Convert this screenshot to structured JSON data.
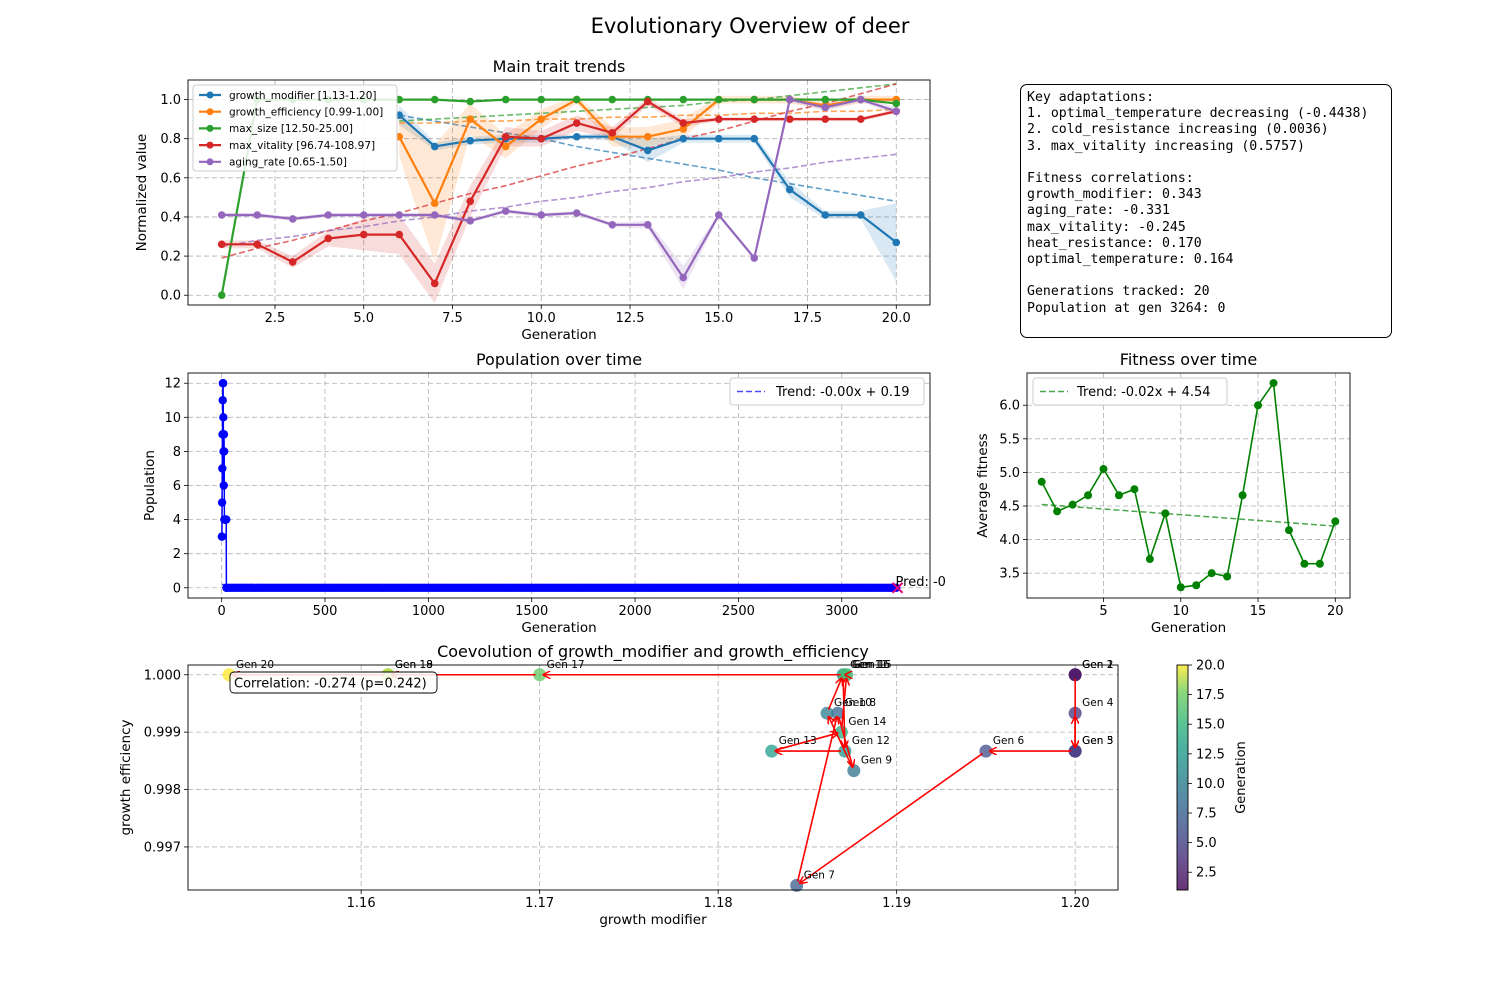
{
  "suptitle": "Evolutionary Overview of deer",
  "colors": {
    "growth_modifier": "#1f77b4",
    "growth_efficiency": "#ff7f0e",
    "max_size": "#2ca02c",
    "max_vitality": "#d62728",
    "aging_rate": "#9467bd",
    "population": "#0000ff",
    "fitness": "#008000",
    "arrows": "#ff0000"
  },
  "info_lines": [
    "Key adaptations:",
    "1. optimal_temperature decreasing (-0.4438)",
    "2. cold_resistance increasing (0.0036)",
    "3. max_vitality increasing (0.5757)",
    "",
    "Fitness correlations:",
    "growth_modifier: 0.343",
    "aging_rate: -0.331",
    "max_vitality: -0.245",
    "heat_resistance: 0.170",
    "optimal_temperature: 0.164",
    "",
    "Generations tracked: 20",
    "Population at gen 3264: 0"
  ],
  "chart_data": [
    {
      "id": "traits",
      "type": "line",
      "title": "Main trait trends",
      "xlabel": "Generation",
      "ylabel": "Normalized value",
      "xlim": [
        0.05,
        20.95
      ],
      "ylim": [
        -0.05,
        1.1
      ],
      "xticks": [
        2.5,
        5.0,
        7.5,
        10.0,
        12.5,
        15.0,
        17.5,
        20.0
      ],
      "xtick_labels": [
        "2.5",
        "5.0",
        "7.5",
        "10.0",
        "12.5",
        "15.0",
        "17.5",
        "20.0"
      ],
      "yticks": [
        0.0,
        0.2,
        0.4,
        0.6,
        0.8,
        1.0
      ],
      "ytick_labels": [
        "0.0",
        "0.2",
        "0.4",
        "0.6",
        "0.8",
        "1.0"
      ],
      "grid": true,
      "legend": "upper-left",
      "x": [
        1,
        2,
        3,
        4,
        5,
        6,
        7,
        8,
        9,
        10,
        11,
        12,
        13,
        14,
        15,
        16,
        17,
        18,
        19,
        20
      ],
      "series": [
        {
          "key": "growth_modifier",
          "name": "growth_modifier [1.13-1.20]",
          "values": [
            null,
            null,
            null,
            null,
            null,
            0.92,
            0.76,
            0.79,
            0.8,
            0.8,
            0.81,
            0.81,
            0.74,
            0.8,
            0.8,
            0.8,
            0.54,
            0.41,
            0.41,
            0.27
          ],
          "trend": [
            null,
            null,
            null,
            null,
            null,
            0.92,
            0.89,
            0.86,
            0.83,
            0.8,
            0.76,
            0.73,
            0.7,
            0.67,
            0.64,
            0.6,
            0.57,
            0.54,
            0.51,
            0.48
          ],
          "band": [
            null,
            null,
            null,
            null,
            null,
            0.05,
            0.02,
            0.02,
            0.02,
            0.02,
            0.01,
            0.02,
            0.06,
            0.02,
            0.02,
            0.02,
            0.04,
            0.02,
            0.02,
            0.2
          ]
        },
        {
          "key": "growth_efficiency",
          "name": "growth_efficiency [0.99-1.00]",
          "values": [
            null,
            null,
            null,
            null,
            null,
            0.81,
            0.47,
            0.9,
            0.76,
            0.9,
            1.0,
            0.81,
            0.81,
            0.85,
            1.0,
            1.0,
            1.0,
            0.97,
            1.0,
            1.0
          ],
          "trend": [
            null,
            null,
            null,
            null,
            null,
            0.88,
            0.88,
            0.89,
            0.89,
            0.9,
            0.9,
            0.91,
            0.91,
            0.92,
            0.92,
            0.93,
            0.93,
            0.94,
            0.94,
            0.95
          ],
          "band": [
            null,
            null,
            null,
            null,
            null,
            0.1,
            0.3,
            0.08,
            0.06,
            0.05,
            0.02,
            0.05,
            0.05,
            0.05,
            0.02,
            0.02,
            0.02,
            0.02,
            0.02,
            0.02
          ]
        },
        {
          "key": "max_size",
          "name": "max_size [12.50-25.00]",
          "values": [
            0.0,
            1.0,
            1.0,
            1.0,
            1.0,
            1.0,
            1.0,
            0.99,
            1.0,
            1.0,
            1.0,
            1.0,
            1.0,
            1.0,
            1.0,
            1.0,
            1.0,
            1.0,
            1.0,
            0.98
          ],
          "trend": [
            null,
            null,
            null,
            null,
            null,
            0.89,
            0.9,
            0.91,
            0.92,
            0.93,
            0.94,
            0.95,
            0.96,
            0.97,
            0.99,
            1.0,
            1.02,
            1.04,
            1.06,
            1.08
          ],
          "band": [
            0,
            0,
            0,
            0,
            0,
            0,
            0,
            0,
            0,
            0,
            0,
            0,
            0,
            0,
            0,
            0,
            0,
            0,
            0,
            0
          ]
        },
        {
          "key": "max_vitality",
          "name": "max_vitality [96.74-108.97]",
          "values": [
            0.26,
            0.26,
            0.17,
            0.29,
            0.31,
            0.31,
            0.06,
            0.48,
            0.81,
            0.8,
            0.88,
            0.83,
            0.99,
            0.88,
            0.9,
            0.9,
            0.9,
            0.9,
            0.9,
            0.94
          ],
          "trend": [
            0.19,
            0.24,
            0.28,
            0.33,
            0.38,
            0.42,
            0.47,
            0.52,
            0.56,
            0.61,
            0.66,
            0.7,
            0.75,
            0.8,
            0.84,
            0.89,
            0.94,
            0.98,
            1.03,
            1.08
          ],
          "band": [
            0.02,
            0.02,
            0.03,
            0.04,
            0.08,
            0.1,
            0.1,
            0.08,
            0.05,
            0.04,
            0.04,
            0.03,
            0.02,
            0.02,
            0.01,
            0.01,
            0.01,
            0.01,
            0.01,
            0.01
          ]
        },
        {
          "key": "aging_rate",
          "name": "aging_rate [0.65-1.50]",
          "values": [
            0.41,
            0.41,
            0.39,
            0.41,
            0.41,
            0.41,
            0.41,
            0.38,
            0.43,
            0.41,
            0.42,
            0.36,
            0.36,
            0.09,
            0.41,
            0.19,
            1.0,
            0.96,
            1.0,
            0.94
          ],
          "trend": [
            0.25,
            0.28,
            0.3,
            0.33,
            0.35,
            0.38,
            0.4,
            0.43,
            0.45,
            0.48,
            0.5,
            0.53,
            0.55,
            0.58,
            0.6,
            0.63,
            0.65,
            0.68,
            0.7,
            0.72
          ],
          "band": [
            0.01,
            0.01,
            0.01,
            0.01,
            0.01,
            0.01,
            0.01,
            0.01,
            0.01,
            0.01,
            0.01,
            0.01,
            0.02,
            0.06,
            0.01,
            0.01,
            0.01,
            0.02,
            0.01,
            0.02
          ]
        }
      ]
    },
    {
      "id": "population",
      "type": "line",
      "title": "Population over time",
      "xlabel": "Generation",
      "ylabel": "Population",
      "xlim": [
        -163,
        3427
      ],
      "ylim": [
        -0.6,
        12.6
      ],
      "xticks": [
        0,
        500,
        1000,
        1500,
        2000,
        2500,
        3000
      ],
      "xtick_labels": [
        "0",
        "500",
        "1000",
        "1500",
        "2000",
        "2500",
        "3000"
      ],
      "yticks": [
        0,
        2,
        4,
        6,
        8,
        10,
        12
      ],
      "ytick_labels": [
        "0",
        "2",
        "4",
        "6",
        "8",
        "10",
        "12"
      ],
      "grid": true,
      "legend": "upper-right",
      "x": [
        1,
        2,
        3,
        4,
        5,
        6,
        7,
        8,
        9,
        10,
        11,
        12,
        13,
        14,
        15,
        16,
        17,
        18,
        19,
        20,
        21,
        22,
        23
      ],
      "values": [
        3,
        5,
        7,
        9,
        11,
        12,
        12,
        10,
        8,
        6,
        9,
        8,
        4,
        4,
        4,
        4,
        4,
        4,
        4,
        4,
        4,
        4,
        0
      ],
      "zero_run": [
        24,
        3264
      ],
      "trend_label": "Trend: -0.00x + 0.19",
      "trend": {
        "slope": -5e-05,
        "intercept": 0.19
      },
      "prediction": {
        "x": 3270,
        "y": 0,
        "label": "Pred: -0"
      }
    },
    {
      "id": "fitness",
      "type": "line",
      "title": "Fitness over time",
      "xlabel": "Generation",
      "ylabel": "Average fitness",
      "xlim": [
        0.05,
        20.95
      ],
      "ylim": [
        3.13,
        6.48
      ],
      "xticks": [
        5,
        10,
        15,
        20
      ],
      "xtick_labels": [
        "5",
        "10",
        "15",
        "20"
      ],
      "yticks": [
        3.5,
        4.0,
        4.5,
        5.0,
        5.5,
        6.0
      ],
      "ytick_labels": [
        "3.5",
        "4.0",
        "4.5",
        "5.0",
        "5.5",
        "6.0"
      ],
      "grid": true,
      "legend": "upper-left",
      "x": [
        1,
        2,
        3,
        4,
        5,
        6,
        7,
        8,
        9,
        10,
        11,
        12,
        13,
        14,
        15,
        16,
        17,
        18,
        19,
        20
      ],
      "values": [
        4.86,
        4.42,
        4.52,
        4.66,
        5.05,
        4.66,
        4.75,
        3.71,
        4.39,
        3.29,
        3.32,
        3.5,
        3.45,
        4.66,
        6.0,
        6.33,
        4.14,
        3.64,
        3.64,
        4.27
      ],
      "trend_label": "Trend: -0.02x + 4.54",
      "trend": {
        "slope": -0.017,
        "intercept": 4.54
      }
    },
    {
      "id": "coevolution",
      "type": "scatter",
      "title": "Coevolution of growth_modifier and growth_efficiency",
      "xlabel": "growth modifier",
      "ylabel": "growth efficiency",
      "xlim": [
        1.1503,
        1.2024
      ],
      "ylim": [
        0.99625,
        1.00017
      ],
      "xticks": [
        1.16,
        1.17,
        1.18,
        1.19,
        1.2
      ],
      "xtick_labels": [
        "1.16",
        "1.17",
        "1.18",
        "1.19",
        "1.20"
      ],
      "yticks": [
        0.997,
        0.998,
        0.999,
        1.0
      ],
      "ytick_labels": [
        "0.997",
        "0.998",
        "0.999",
        "1.000"
      ],
      "grid": true,
      "annotation": "Correlation: -0.274 (p=0.242)",
      "colorbar": {
        "label": "Generation",
        "min": 1,
        "max": 20,
        "ticks": [
          2.5,
          5.0,
          7.5,
          10.0,
          12.5,
          15.0,
          17.5,
          20.0
        ],
        "tick_labels": [
          "2.5",
          "5.0",
          "7.5",
          "10.0",
          "12.5",
          "15.0",
          "17.5",
          "20.0"
        ]
      },
      "points": [
        {
          "gen": 1,
          "x": 1.2,
          "y": 1.0,
          "label": "Gen 1"
        },
        {
          "gen": 2,
          "x": 1.2,
          "y": 1.0,
          "label": "Gen 2"
        },
        {
          "gen": 3,
          "x": 1.2,
          "y": 0.99867,
          "label": "Gen 3"
        },
        {
          "gen": 4,
          "x": 1.2,
          "y": 0.99933,
          "label": "Gen 4"
        },
        {
          "gen": 5,
          "x": 1.2,
          "y": 0.99867,
          "label": "Gen 5"
        },
        {
          "gen": 6,
          "x": 1.195,
          "y": 0.99867,
          "label": "Gen 6"
        },
        {
          "gen": 7,
          "x": 1.1844,
          "y": 0.99633,
          "label": "Gen 7"
        },
        {
          "gen": 8,
          "x": 1.1867,
          "y": 0.99933,
          "label": "Gen 8"
        },
        {
          "gen": 9,
          "x": 1.1876,
          "y": 0.99833,
          "label": "Gen 9"
        },
        {
          "gen": 10,
          "x": 1.1861,
          "y": 0.99933,
          "label": "Gen 10"
        },
        {
          "gen": 11,
          "x": 1.187,
          "y": 1.0,
          "label": "Gen 11"
        },
        {
          "gen": 12,
          "x": 1.1871,
          "y": 0.99867,
          "label": "Gen 12"
        },
        {
          "gen": 13,
          "x": 1.183,
          "y": 0.99867,
          "label": "Gen 13"
        },
        {
          "gen": 14,
          "x": 1.1869,
          "y": 0.999,
          "label": "Gen 14"
        },
        {
          "gen": 15,
          "x": 1.1872,
          "y": 1.0,
          "label": "Gen 15"
        },
        {
          "gen": 16,
          "x": 1.1871,
          "y": 1.0,
          "label": "Gen 16"
        },
        {
          "gen": 17,
          "x": 1.17,
          "y": 1.0,
          "label": "Gen 17"
        },
        {
          "gen": 18,
          "x": 1.1615,
          "y": 1.0,
          "label": "Gen 18"
        },
        {
          "gen": 19,
          "x": 1.1615,
          "y": 1.0,
          "label": "Gen 19"
        },
        {
          "gen": 20,
          "x": 1.1526,
          "y": 1.0,
          "label": "Gen 20"
        }
      ]
    }
  ]
}
